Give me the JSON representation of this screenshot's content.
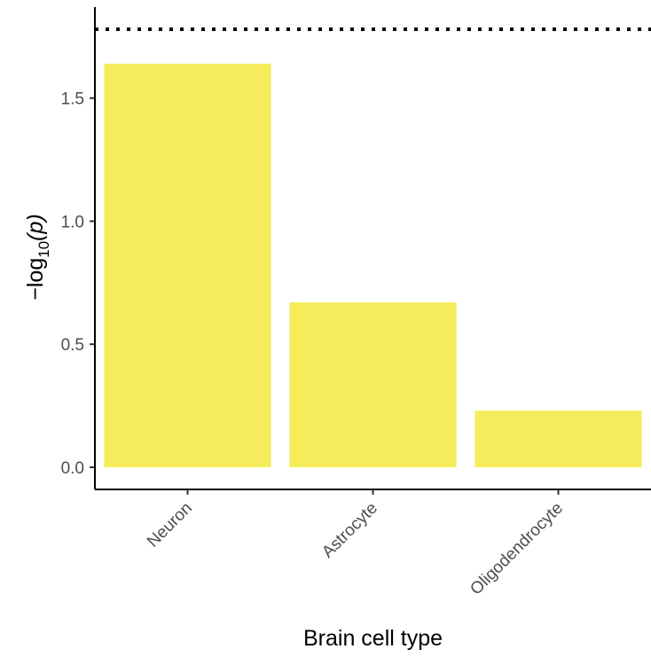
{
  "chart_data": {
    "type": "bar",
    "categories": [
      "Neuron",
      "Astrocyte",
      "Oligodendrocyte"
    ],
    "values": [
      1.64,
      0.67,
      0.23
    ],
    "xlabel": "Brain cell type",
    "ylabel": {
      "prefix": "−log",
      "subscript": "10",
      "argument": "(p)"
    },
    "ylim": [
      -0.09,
      1.87
    ],
    "yticks": [
      0.0,
      0.5,
      1.0,
      1.5
    ],
    "ytick_labels": [
      "0.0",
      "0.5",
      "1.0",
      "1.5"
    ],
    "threshold_line": {
      "value": 1.78,
      "style": "dotted",
      "color": "#000000"
    },
    "bar_color": "#f4ec5a",
    "grid": false,
    "legend": "none"
  }
}
